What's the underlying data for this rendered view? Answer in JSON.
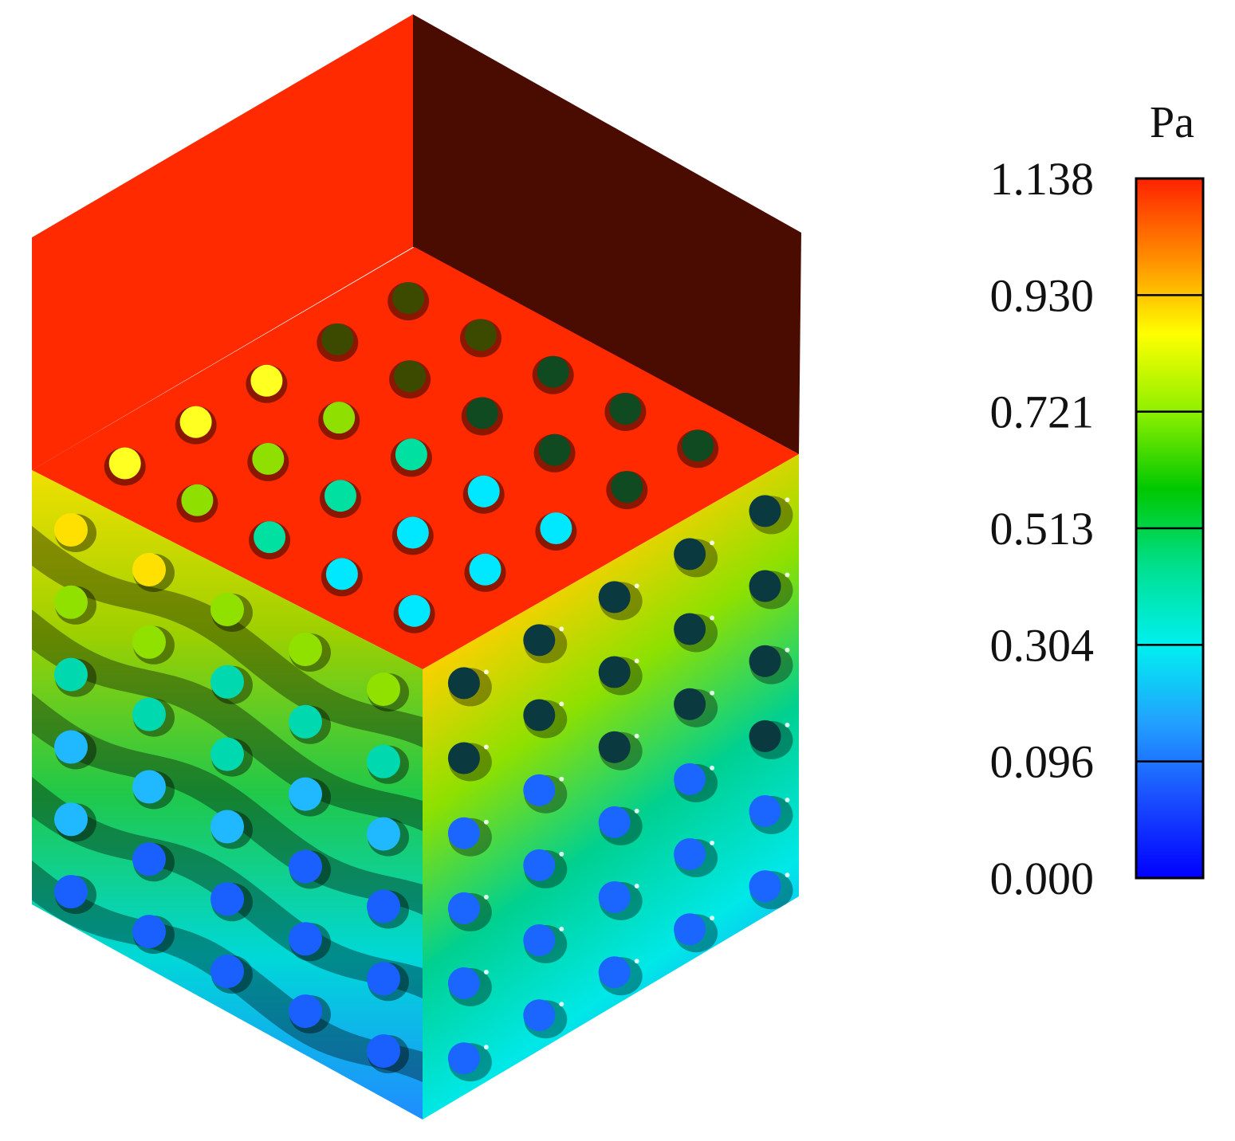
{
  "colorbar": {
    "unit": "Pa",
    "ticks": [
      "1.138",
      "0.930",
      "0.721",
      "0.513",
      "0.304",
      "0.096",
      "0.000"
    ],
    "range": [
      0.0,
      1.138
    ],
    "colors": [
      "#ff2200",
      "#ff8a00",
      "#ffff00",
      "#8ff000",
      "#00c800",
      "#00e090",
      "#00f0f0",
      "#22a0ff",
      "#1a4cff",
      "#0000ff"
    ]
  },
  "model": {
    "top_color": "#ff2a00",
    "back_left_color": "#ff2a00",
    "back_right_color": "#4a0b00",
    "left_face_gradient": [
      "#f0e000",
      "#9ed000",
      "#20c84a",
      "#00d8d8",
      "#1f8cff"
    ],
    "right_face_gradient": [
      "#ff3000",
      "#ffd000",
      "#8ee000",
      "#00d090",
      "#00e8e8",
      "#2090ff"
    ],
    "pore_colors": {
      "top": [
        "#ffff22",
        "#8fe000",
        "#00e0a0",
        "#00e8ff"
      ],
      "left": [
        "#ffe000",
        "#90e000",
        "#00d8b0",
        "#20b8ff",
        "#1a60ff"
      ],
      "right": [
        "#0a3a40",
        "#1a66ff"
      ]
    }
  }
}
